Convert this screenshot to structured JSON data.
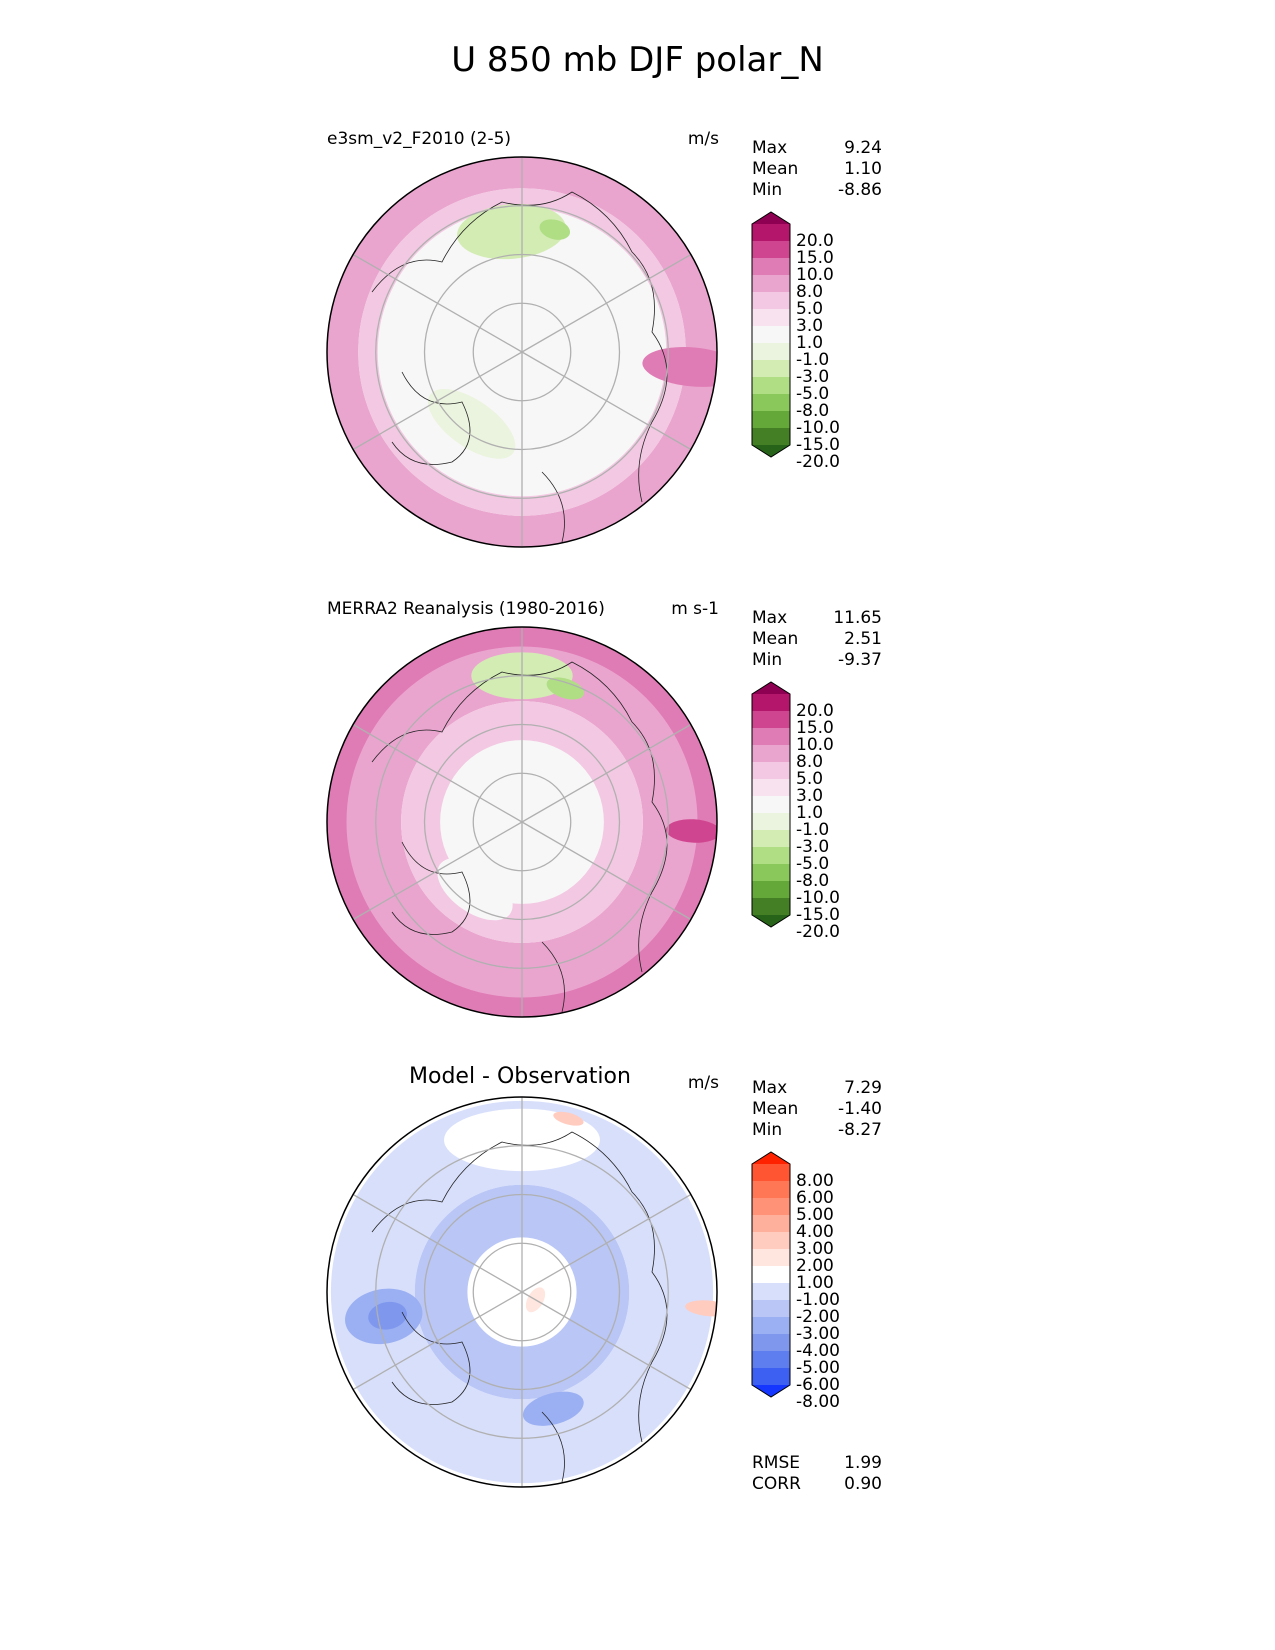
{
  "title": "U 850 mb DJF polar_N",
  "chart_data": [
    {
      "type": "heatmap",
      "title": "e3sm_v2_F2010 (2-5)",
      "units": "m/s",
      "stats": {
        "max_label": "Max",
        "max": "9.24",
        "mean_label": "Mean",
        "mean": "1.10",
        "min_label": "Min",
        "min": "-8.86"
      },
      "colorbar": {
        "labels": [
          "20.0",
          "15.0",
          "10.0",
          "8.0",
          "5.0",
          "3.0",
          "1.0",
          "-1.0",
          "-3.0",
          "-5.0",
          "-8.0",
          "-10.0",
          "-15.0",
          "-20.0"
        ],
        "colors": [
          "#8e0152",
          "#b3166a",
          "#d0458f",
          "#e07cb5",
          "#eaa5cf",
          "#f3c8e2",
          "#f9e2ef",
          "#f7f7f7",
          "#ebf4de",
          "#d3ecb4",
          "#b0de85",
          "#8bc85c",
          "#65a83a",
          "#457f25",
          "#276419"
        ]
      },
      "map": {
        "background": "#f7f7f7",
        "rings": [
          {
            "color": "#eaa5cf",
            "r0": 0.84,
            "r1": 1.0
          },
          {
            "color": "#f3c8e2",
            "r0": 0.74,
            "r1": 0.84
          }
        ],
        "blobs": [
          {
            "color": "#d3ecb4",
            "r": 0.62,
            "a": -95,
            "rx": 0.28,
            "ry": 0.14
          },
          {
            "color": "#b0de85",
            "r": 0.65,
            "a": -75,
            "rx": 0.08,
            "ry": 0.05
          },
          {
            "color": "#ebf4de",
            "r": 0.45,
            "a": 125,
            "rx": 0.26,
            "ry": 0.12
          },
          {
            "color": "#e07cb5",
            "r": 0.88,
            "a": 5,
            "rx": 0.1,
            "ry": 0.26
          }
        ]
      }
    },
    {
      "type": "heatmap",
      "title": "MERRA2 Reanalysis (1980-2016)",
      "units": "m s-1",
      "stats": {
        "max_label": "Max",
        "max": "11.65",
        "mean_label": "Mean",
        "mean": "2.51",
        "min_label": "Min",
        "min": "-9.37"
      },
      "colorbar": {
        "labels": [
          "20.0",
          "15.0",
          "10.0",
          "8.0",
          "5.0",
          "3.0",
          "1.0",
          "-1.0",
          "-3.0",
          "-5.0",
          "-8.0",
          "-10.0",
          "-15.0",
          "-20.0"
        ],
        "colors": [
          "#8e0152",
          "#b3166a",
          "#d0458f",
          "#e07cb5",
          "#eaa5cf",
          "#f3c8e2",
          "#f9e2ef",
          "#f7f7f7",
          "#ebf4de",
          "#d3ecb4",
          "#b0de85",
          "#8bc85c",
          "#65a83a",
          "#457f25",
          "#276419"
        ]
      },
      "map": {
        "background": "#f7f7f7",
        "rings": [
          {
            "color": "#eaa5cf",
            "r0": 0.62,
            "r1": 1.0
          },
          {
            "color": "#f3c8e2",
            "r0": 0.42,
            "r1": 0.62
          },
          {
            "color": "#e07cb5",
            "r0": 0.9,
            "r1": 1.0
          }
        ],
        "blobs": [
          {
            "color": "#d3ecb4",
            "r": 0.75,
            "a": -90,
            "rx": 0.26,
            "ry": 0.12
          },
          {
            "color": "#b0de85",
            "r": 0.72,
            "a": -72,
            "rx": 0.1,
            "ry": 0.05
          },
          {
            "color": "#f7f7f7",
            "r": 0.42,
            "a": 125,
            "rx": 0.22,
            "ry": 0.12
          },
          {
            "color": "#d0458f",
            "r": 0.88,
            "a": 3,
            "rx": 0.06,
            "ry": 0.14
          }
        ]
      }
    },
    {
      "type": "heatmap",
      "title": "Model - Observation",
      "units": "m/s",
      "stats": {
        "max_label": "Max",
        "max": "7.29",
        "mean_label": "Mean",
        "mean": "-1.40",
        "min_label": "Min",
        "min": "-8.27"
      },
      "extra_stats": {
        "rmse_label": "RMSE",
        "rmse": "1.99",
        "corr_label": "CORR",
        "corr": "0.90"
      },
      "colorbar": {
        "labels": [
          "8.00",
          "6.00",
          "5.00",
          "4.00",
          "3.00",
          "2.00",
          "1.00",
          "-1.00",
          "-2.00",
          "-3.00",
          "-4.00",
          "-5.00",
          "-6.00",
          "-8.00"
        ],
        "colors": [
          "#ff2200",
          "#ff5533",
          "#ff7755",
          "#ff9277",
          "#ffb09c",
          "#ffccbf",
          "#ffe6df",
          "#ffffff",
          "#d8dffb",
          "#b9c6f6",
          "#9bb0f2",
          "#7f98ee",
          "#5e7ef0",
          "#3d5ff2",
          "#1536ff"
        ]
      },
      "map": {
        "background": "#ffffff",
        "rings": [
          {
            "color": "#d8dffb",
            "r0": 0.55,
            "r1": 0.98
          },
          {
            "color": "#b9c6f6",
            "r0": 0.28,
            "r1": 0.55
          }
        ],
        "blobs": [
          {
            "color": "#ffffff",
            "r": 0.78,
            "a": -90,
            "rx": 0.4,
            "ry": 0.16
          },
          {
            "color": "#ffffff",
            "r": 0.0,
            "a": 0,
            "rx": 0.16,
            "ry": 0.16
          },
          {
            "color": "#9bb0f2",
            "r": 0.72,
            "a": 170,
            "rx": 0.14,
            "ry": 0.2
          },
          {
            "color": "#7f98ee",
            "r": 0.7,
            "a": 170,
            "rx": 0.07,
            "ry": 0.1
          },
          {
            "color": "#9bb0f2",
            "r": 0.62,
            "a": 75,
            "rx": 0.16,
            "ry": 0.08
          },
          {
            "color": "#ffccbf",
            "r": 0.96,
            "a": 5,
            "rx": 0.04,
            "ry": 0.12
          },
          {
            "color": "#ffccbf",
            "r": 0.92,
            "a": -75,
            "rx": 0.08,
            "ry": 0.03
          },
          {
            "color": "#ffe6df",
            "r": 0.08,
            "a": 30,
            "rx": 0.07,
            "ry": 0.04
          }
        ]
      }
    }
  ]
}
